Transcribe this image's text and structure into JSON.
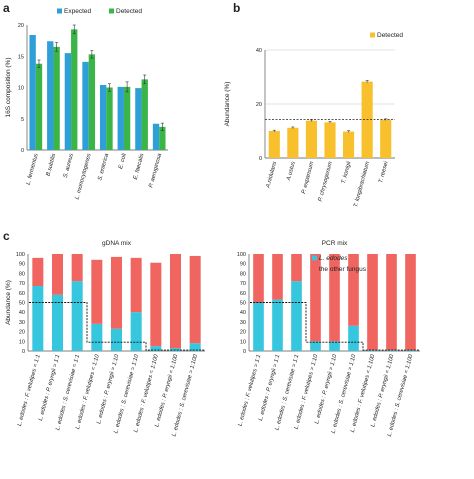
{
  "panels": {
    "a": "a",
    "b": "b",
    "c": "c"
  },
  "chart_data": [
    {
      "type": "bar",
      "panel": "a",
      "ylabel": "16S composition (%)",
      "ylim": [
        0,
        20
      ],
      "yticks": [
        0,
        5,
        10,
        15,
        20
      ],
      "grid": false,
      "legend": "top",
      "categories": [
        "L. fermentus",
        "B.subtilis",
        "S. aureus",
        "L. monocytogenes",
        "S. enterica",
        "E. coli",
        "E. faecalis",
        "P. aeruginosa"
      ],
      "series": [
        {
          "name": "Expected",
          "color": "#2f9fd8",
          "values": [
            18.4,
            17.4,
            15.5,
            14.1,
            10.4,
            10.1,
            9.9,
            4.2
          ]
        },
        {
          "name": "Detected",
          "color": "#3bb548",
          "values": [
            13.8,
            16.5,
            19.3,
            15.3,
            10.0,
            10.1,
            11.3,
            3.7
          ],
          "errors": [
            0.6,
            0.7,
            0.7,
            0.6,
            0.6,
            0.8,
            0.7,
            0.6
          ]
        }
      ]
    },
    {
      "type": "bar",
      "panel": "b",
      "ylabel": "Abundance (%)",
      "ylim": [
        0,
        40
      ],
      "yticks": [
        0,
        20,
        40
      ],
      "grid": true,
      "legend": "top-right",
      "reference_line": 14.3,
      "categories": [
        "A.nidulans",
        "A.ustus",
        "P. expansum",
        "P. chrysogenum",
        "T. konigii",
        "T. longibrachiatum",
        "T. reesei"
      ],
      "series": [
        {
          "name": "Detected",
          "color": "#f8c02c",
          "values": [
            10.0,
            11.2,
            13.8,
            13.2,
            9.8,
            28.3,
            14.2
          ],
          "errors": [
            0.3,
            0.3,
            0.3,
            0.3,
            0.3,
            0.4,
            0.3
          ]
        }
      ]
    },
    {
      "type": "bar",
      "stacked": true,
      "panel": "c",
      "title": "gDNA mix",
      "ylabel": "Abundance (%)",
      "ylim": [
        0,
        100
      ],
      "yticks": [
        0,
        10,
        20,
        30,
        40,
        50,
        60,
        70,
        80,
        90,
        100
      ],
      "grid": false,
      "categories": [
        "L. edodes : F. velutipes = 1:1",
        "L. edodes : P. eryngii = 1:1",
        "L. edodes : S. cerevisiae = 1:1",
        "L. edodes : F. velutipes = 1:10",
        "L. edodes : P. eryngii = 1:10",
        "L. edodes : S. cerevisiae = 1:10",
        "L. edodes : F. velutipes = 1:100",
        "L. edodes : P. eryngii = 1:100",
        "L. edodes : S. cerevisiae = 1:100"
      ],
      "expected_line": [
        50,
        50,
        50,
        9.1,
        9.1,
        9.1,
        1,
        1,
        1
      ],
      "series": [
        {
          "name": "L. edodes",
          "color": "#36c6dd",
          "values": [
            67,
            58,
            72,
            28,
            23,
            40,
            5,
            3,
            8
          ]
        },
        {
          "name": "the other fungus",
          "color": "#f06560",
          "values": [
            29,
            42,
            28,
            66,
            74,
            56,
            86,
            97,
            90
          ]
        }
      ]
    },
    {
      "type": "bar",
      "stacked": true,
      "panel": "c",
      "title": "PCR mix",
      "ylim": [
        0,
        100
      ],
      "yticks": [
        0,
        10,
        20,
        30,
        40,
        50,
        60,
        70,
        80,
        90,
        100
      ],
      "grid": false,
      "legend": "top-right",
      "categories": [
        "L. edodes : F. velutipes = 1:1",
        "L. edodes : P. eryngii = 1:1",
        "L. edodes : S. cerevisiae = 1:1",
        "L. edodes : F. velutipes = 1:10",
        "L. edodes : P. eryngii = 1:10",
        "L. edodes : S. cerevisiae = 1:10",
        "L. edodes : F. velutipes = 1:100",
        "L. edodes : P. eryngii = 1:100",
        "L. edodes : S. cerevisiae = 1:100"
      ],
      "expected_line": [
        50,
        50,
        50,
        9.1,
        9.1,
        9.1,
        1,
        1,
        1
      ],
      "series": [
        {
          "name": "L. edodes",
          "color": "#36c6dd",
          "values": [
            50,
            53,
            72,
            10,
            10,
            26,
            1,
            1,
            1
          ]
        },
        {
          "name": "the other fungus",
          "color": "#f06560",
          "values": [
            50,
            47,
            28,
            90,
            90,
            74,
            99,
            99,
            99
          ]
        }
      ]
    }
  ]
}
